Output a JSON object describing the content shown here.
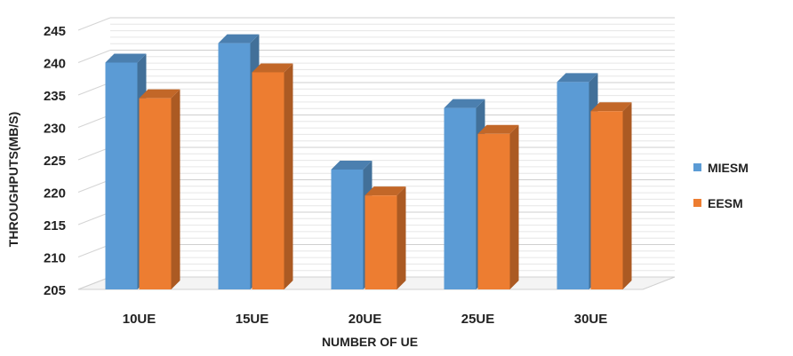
{
  "chart_data": {
    "type": "bar",
    "title": "",
    "categories": [
      "10UE",
      "15UE",
      "20UE",
      "25UE",
      "30UE"
    ],
    "series": [
      {
        "name": "MIESM",
        "values": [
          240,
          243,
          223.5,
          233,
          237
        ],
        "color": "#5B9BD5"
      },
      {
        "name": "EESM",
        "values": [
          234.5,
          238.5,
          219.5,
          229,
          232.5
        ],
        "color": "#ED7D31"
      }
    ],
    "xlabel": "NUMBER OF UE",
    "ylabel": "THROUGHPUTS(MB/S)",
    "ylim": [
      205,
      245
    ],
    "yticks": [
      "205",
      "210",
      "215",
      "220",
      "225",
      "230",
      "235",
      "240",
      "245"
    ],
    "grid": true,
    "legend": "right",
    "style": "3d-column"
  }
}
